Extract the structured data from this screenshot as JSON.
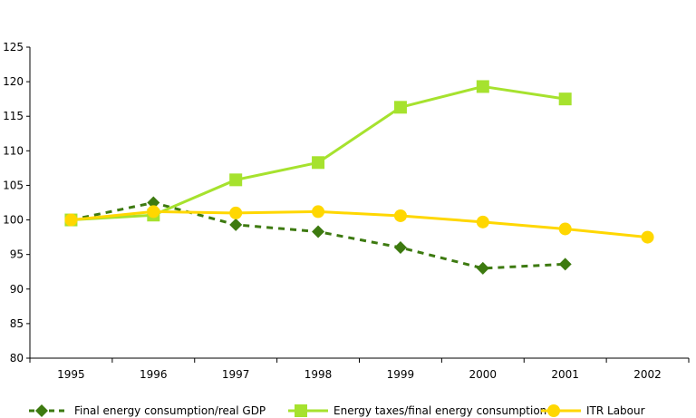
{
  "chart_data": {
    "type": "line",
    "title": "",
    "xlabel": "",
    "ylabel": "",
    "categories": [
      "1995",
      "1996",
      "1997",
      "1998",
      "1999",
      "2000",
      "2001",
      "2002"
    ],
    "ylim": [
      80,
      125
    ],
    "yticks": [
      80,
      85,
      90,
      95,
      100,
      105,
      110,
      115,
      120,
      125
    ],
    "grid": false,
    "legend_position": "bottom",
    "series": [
      {
        "name": "Final energy consumption/real GDP",
        "values": [
          100,
          102.5,
          99.3,
          98.3,
          96.0,
          93.0,
          93.6,
          null
        ],
        "color": "#3d7a10",
        "line_style": "dashed",
        "marker": "diamond"
      },
      {
        "name": "Energy taxes/final energy consumption",
        "values": [
          100,
          100.7,
          105.8,
          108.3,
          116.3,
          119.3,
          117.5,
          null
        ],
        "color": "#a6e22e",
        "line_style": "solid",
        "marker": "square"
      },
      {
        "name": "ITR Labour",
        "values": [
          100,
          101.2,
          101.0,
          101.2,
          100.6,
          99.7,
          98.7,
          97.5
        ],
        "color": "#ffd700",
        "line_style": "solid",
        "marker": "circle"
      }
    ]
  }
}
